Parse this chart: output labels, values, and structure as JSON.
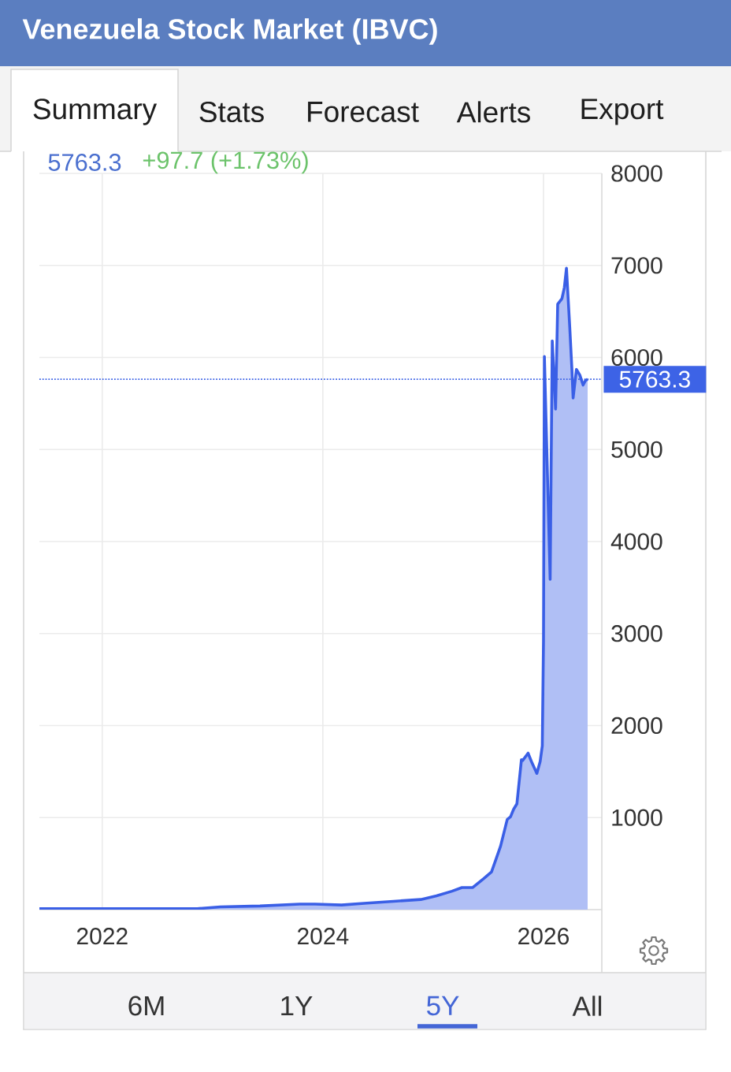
{
  "chart_data": {
    "type": "area",
    "title": "Venezuela Stock Market (IBVC)",
    "x": [
      "2021-06-07",
      "2022-03-19",
      "2022-11-11",
      "2023-01-27",
      "2023-06-07",
      "2023-10-16",
      "2023-12-06",
      "2024-03-03",
      "2024-05-26",
      "2024-08-22",
      "2024-11-21",
      "2025-01-12",
      "2025-03-04",
      "2025-04-06",
      "2025-05-12",
      "2025-06-18",
      "2025-07-13",
      "2025-07-28",
      "2025-08-12",
      "2025-09-03",
      "2025-09-14",
      "2025-09-24",
      "2025-10-05",
      "2025-10-20",
      "2025-10-24",
      "2025-11-11",
      "2025-11-22",
      "2025-12-10",
      "2025-12-21",
      "2025-12-28",
      "2026-01-01",
      "2026-01-04",
      "2026-01-23",
      "2026-01-30",
      "2026-02-10",
      "2026-02-17",
      "2026-03-03",
      "2026-03-11",
      "2026-03-18",
      "2026-03-29",
      "2026-04-05",
      "2026-04-09",
      "2026-04-20",
      "2026-05-01",
      "2026-05-12",
      "2026-05-20",
      "2026-05-27"
    ],
    "series": [
      {
        "color": "#3a5fe6",
        "values": [
          10,
          10,
          10,
          30,
          40,
          60,
          60,
          50,
          70,
          90,
          110,
          150,
          200,
          240,
          240,
          340,
          410,
          550,
          690,
          980,
          1010,
          1090,
          1150,
          1630,
          1620,
          1700,
          1610,
          1480,
          1610,
          1780,
          2920,
          6010,
          3590,
          6180,
          5440,
          6580,
          6640,
          6760,
          6970,
          6320,
          5870,
          5560,
          5870,
          5810,
          5700,
          5750,
          5763.3
        ]
      }
    ],
    "xlim": [
      "2021-06-07",
      "2026-07-13"
    ],
    "xticks": [
      "2022",
      "2024",
      "2026"
    ],
    "ylim": [
      0,
      8000
    ],
    "yticks": [
      1000,
      2000,
      3000,
      4000,
      5000,
      6000,
      7000,
      8000
    ],
    "grid": true,
    "ref_lines": [
      {
        "axis": "y",
        "value": 5763.3,
        "label": "5763.3",
        "color": "#3d63e6",
        "line_style": "dotted"
      }
    ],
    "annotations": [
      "5763.3",
      "+97.7 (+1.73%)",
      "Summary",
      "Stats",
      "Forecast",
      "Alerts",
      "Export",
      "6M",
      "1Y",
      "5Y",
      "All"
    ]
  }
}
